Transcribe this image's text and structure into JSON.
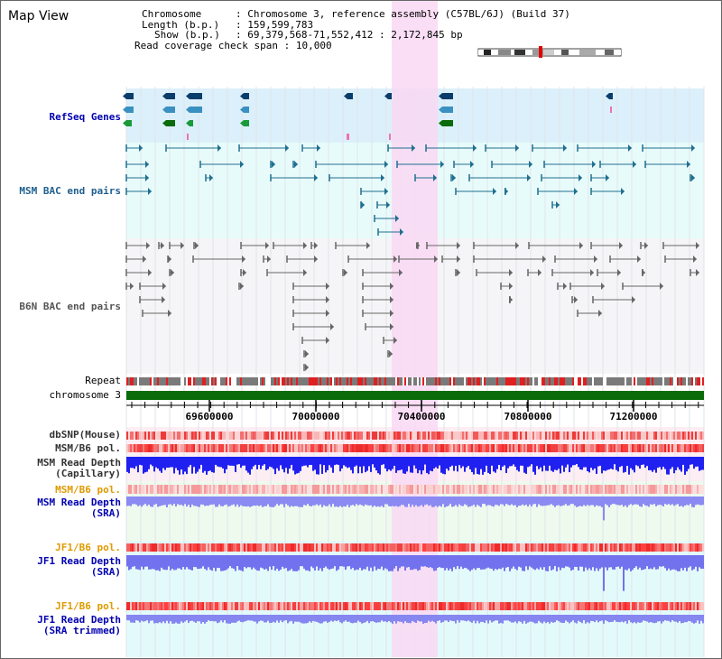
{
  "title": "Map View",
  "info": {
    "chromosome_key": "Chromosome",
    "chromosome_value": "Chromosome 3, reference assembly (C57BL/6J) (Build 37)",
    "length_key": "Length (b.p.)",
    "length_value": "159,599,783",
    "show_key": "Show (b.p.)",
    "show_value": "69,379,568-71,552,412 : 2,172,845 bp",
    "span_key": "Read coverage check span",
    "span_value": "10,000"
  },
  "tracks": {
    "refseq": "RefSeq Genes",
    "msm_bac": "MSM BAC end pairs",
    "b6n_bac": "B6N BAC end pairs",
    "repeat": "Repeat",
    "chromosome": "chromosome 3",
    "dbsnp": "dbSNP(Mouse)",
    "msm_b6_pol": "MSM/B6 pol.",
    "msm_depth_cap_1": "MSM Read Depth",
    "msm_depth_cap_2": "(Capillary)",
    "msm_b6_pol_2": "MSM/B6 pol.",
    "msm_depth_sra_1": "MSM Read Depth",
    "msm_depth_sra_2": "(SRA)",
    "jf1_b6_pol": "JF1/B6 pol.",
    "jf1_depth_sra_1": "JF1 Read Depth",
    "jf1_depth_sra_2": "(SRA)",
    "jf1_b6_pol_2": "JF1/B6 pol.",
    "jf1_depth_trim_1": "JF1 Read Depth",
    "jf1_depth_trim_2": "(SRA trimmed)"
  },
  "axis": {
    "ticks": [
      "69600000",
      "70000000",
      "70400000",
      "70800000",
      "71200000"
    ]
  },
  "colors": {
    "refseq_band": "#dcf0fb",
    "bac_band": "#e8fbfb",
    "highlight": "#f9d8f3",
    "chromosome": "#0a6b0a",
    "pol_red": "#f04040",
    "depth_blue": "#2020f0",
    "depth_light": "#8080f0"
  }
}
